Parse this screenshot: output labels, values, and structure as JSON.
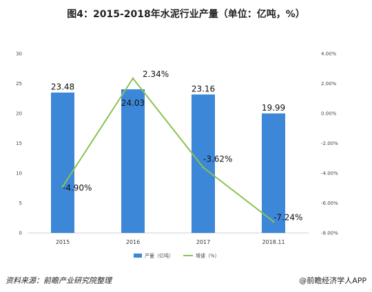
{
  "chart_data": {
    "type": "bar",
    "title": "图4：2015-2018年水泥行业产量（单位：亿吨，%）",
    "categories": [
      "2015",
      "2016",
      "2017",
      "2018.11"
    ],
    "series": [
      {
        "name": "产量（亿吨）",
        "type": "bar",
        "axis": "left",
        "values": [
          23.48,
          24.03,
          23.16,
          19.99
        ],
        "labels": [
          "23.48",
          "24.03",
          "23.16",
          "19.99"
        ],
        "color": "#3d87d9"
      },
      {
        "name": "增速（%）",
        "type": "line",
        "axis": "right",
        "values": [
          -4.9,
          2.34,
          -3.62,
          -7.24
        ],
        "labels": [
          "-4.90%",
          "2.34%",
          "-3.62%",
          "-7.24%"
        ],
        "color": "#8cc152"
      }
    ],
    "left_axis": {
      "min": 0,
      "max": 30,
      "step": 5,
      "ticks": [
        "0",
        "5",
        "10",
        "15",
        "20",
        "25",
        "30"
      ]
    },
    "right_axis": {
      "min": -8,
      "max": 4,
      "step": 2,
      "ticks": [
        "-8.00%",
        "-6.00%",
        "-4.00%",
        "-2.00%",
        "0.00%",
        "2.00%",
        "4.00%"
      ]
    },
    "grid": false,
    "legend": "bottom-center"
  },
  "footer": {
    "source": "资料来源：前瞻产业研究院整理",
    "brand": "@前瞻经济学人APP"
  }
}
